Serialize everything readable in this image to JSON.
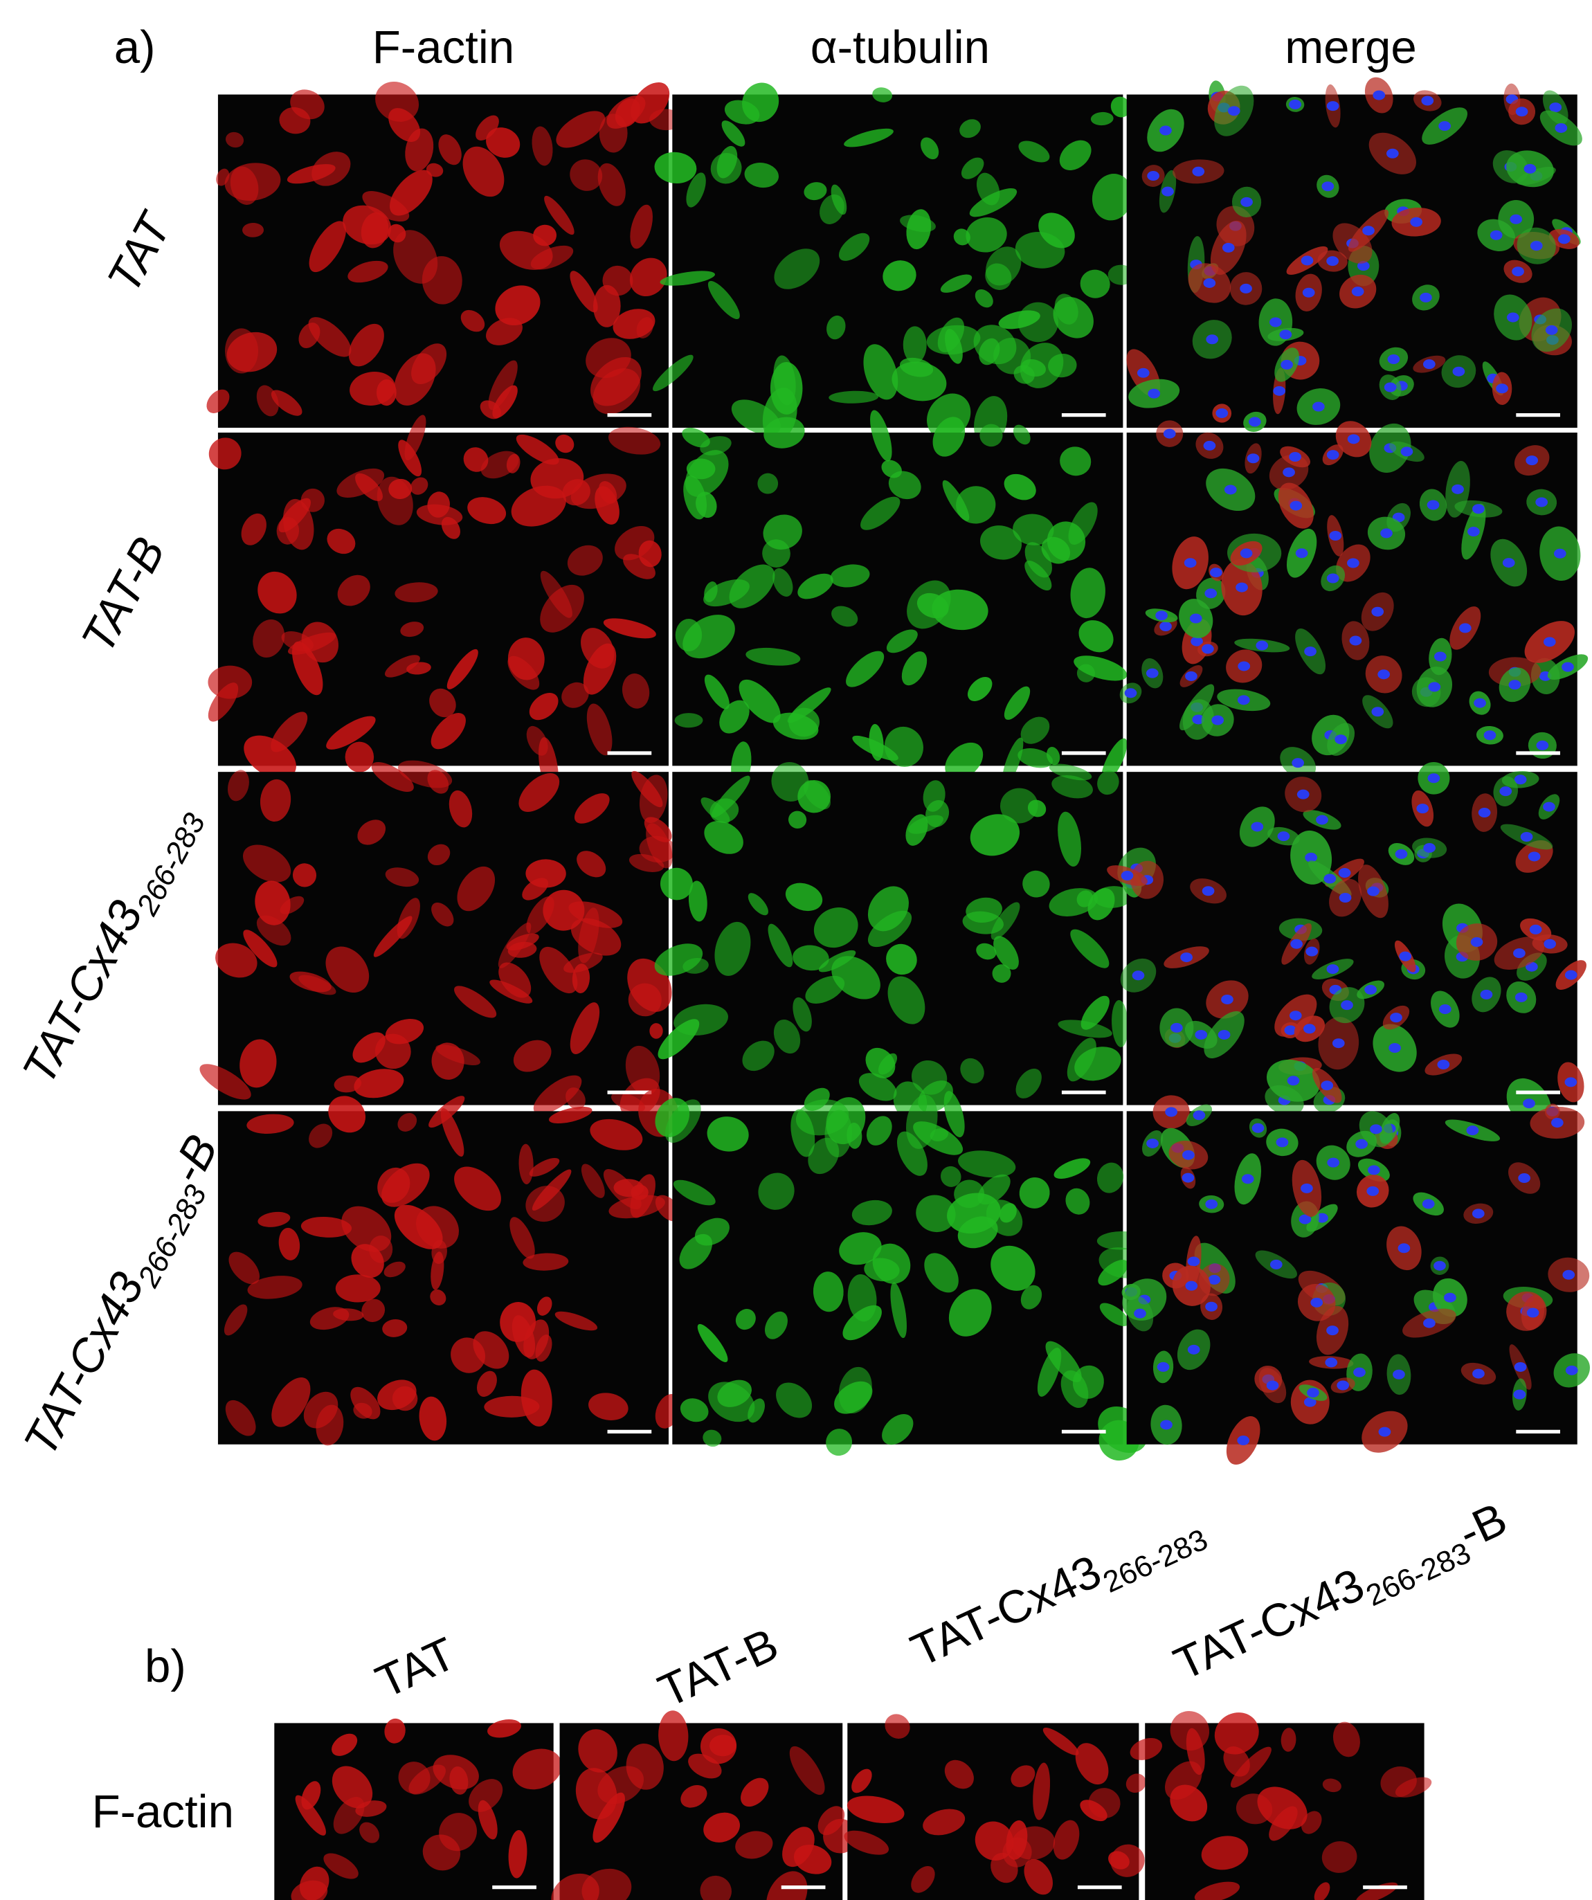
{
  "panel_a": {
    "label": "a)",
    "columns": [
      "F-actin",
      "α-tubulin",
      "merge"
    ],
    "rows": [
      {
        "main": "TAT"
      },
      {
        "main": "TAT-B"
      },
      {
        "main": "TAT-Cx43",
        "sub": "266-283"
      },
      {
        "main": "TAT-Cx43",
        "sub": "266-283",
        "suffix": "-B"
      }
    ]
  },
  "panel_b": {
    "label": "b)",
    "row_label": "F-actin",
    "columns": [
      {
        "main": "TAT"
      },
      {
        "main": "TAT-B"
      },
      {
        "main": "TAT-Cx43",
        "sub": "266-283"
      },
      {
        "main": "TAT-Cx43",
        "sub": "266-283",
        "suffix": "-B"
      }
    ]
  }
}
